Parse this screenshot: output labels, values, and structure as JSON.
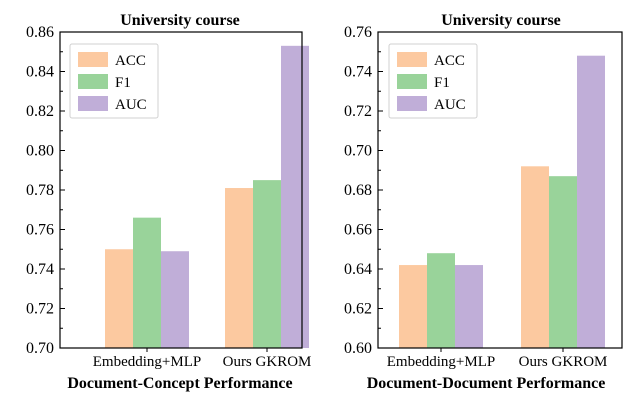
{
  "colors": {
    "ACC": "#fcc9a0",
    "F1": "#99d39a",
    "AUC": "#c0aed8"
  },
  "chart_data": [
    {
      "type": "bar",
      "title": "University course",
      "xlabel": "Document-Concept Performance",
      "ylabel": "",
      "categories": [
        "Embedding+MLP",
        "Ours GKROM"
      ],
      "series": [
        {
          "name": "ACC",
          "values": [
            0.75,
            0.781
          ]
        },
        {
          "name": "F1",
          "values": [
            0.766,
            0.785
          ]
        },
        {
          "name": "AUC",
          "values": [
            0.749,
            0.853
          ]
        }
      ],
      "ylim": [
        0.7,
        0.86
      ],
      "yticks": [
        "0.70",
        "0.72",
        "0.74",
        "0.76",
        "0.78",
        "0.80",
        "0.82",
        "0.84",
        "0.86"
      ],
      "legend": "top-left",
      "grid": false
    },
    {
      "type": "bar",
      "title": "University course",
      "xlabel": "Document-Document Performance",
      "ylabel": "",
      "categories": [
        "Embedding+MLP",
        "Ours GKROM"
      ],
      "series": [
        {
          "name": "ACC",
          "values": [
            0.642,
            0.692
          ]
        },
        {
          "name": "F1",
          "values": [
            0.648,
            0.687
          ]
        },
        {
          "name": "AUC",
          "values": [
            0.642,
            0.748
          ]
        }
      ],
      "ylim": [
        0.6,
        0.76
      ],
      "yticks": [
        "0.60",
        "0.62",
        "0.64",
        "0.66",
        "0.68",
        "0.70",
        "0.72",
        "0.74",
        "0.76"
      ],
      "legend": "top-left",
      "grid": false
    }
  ]
}
